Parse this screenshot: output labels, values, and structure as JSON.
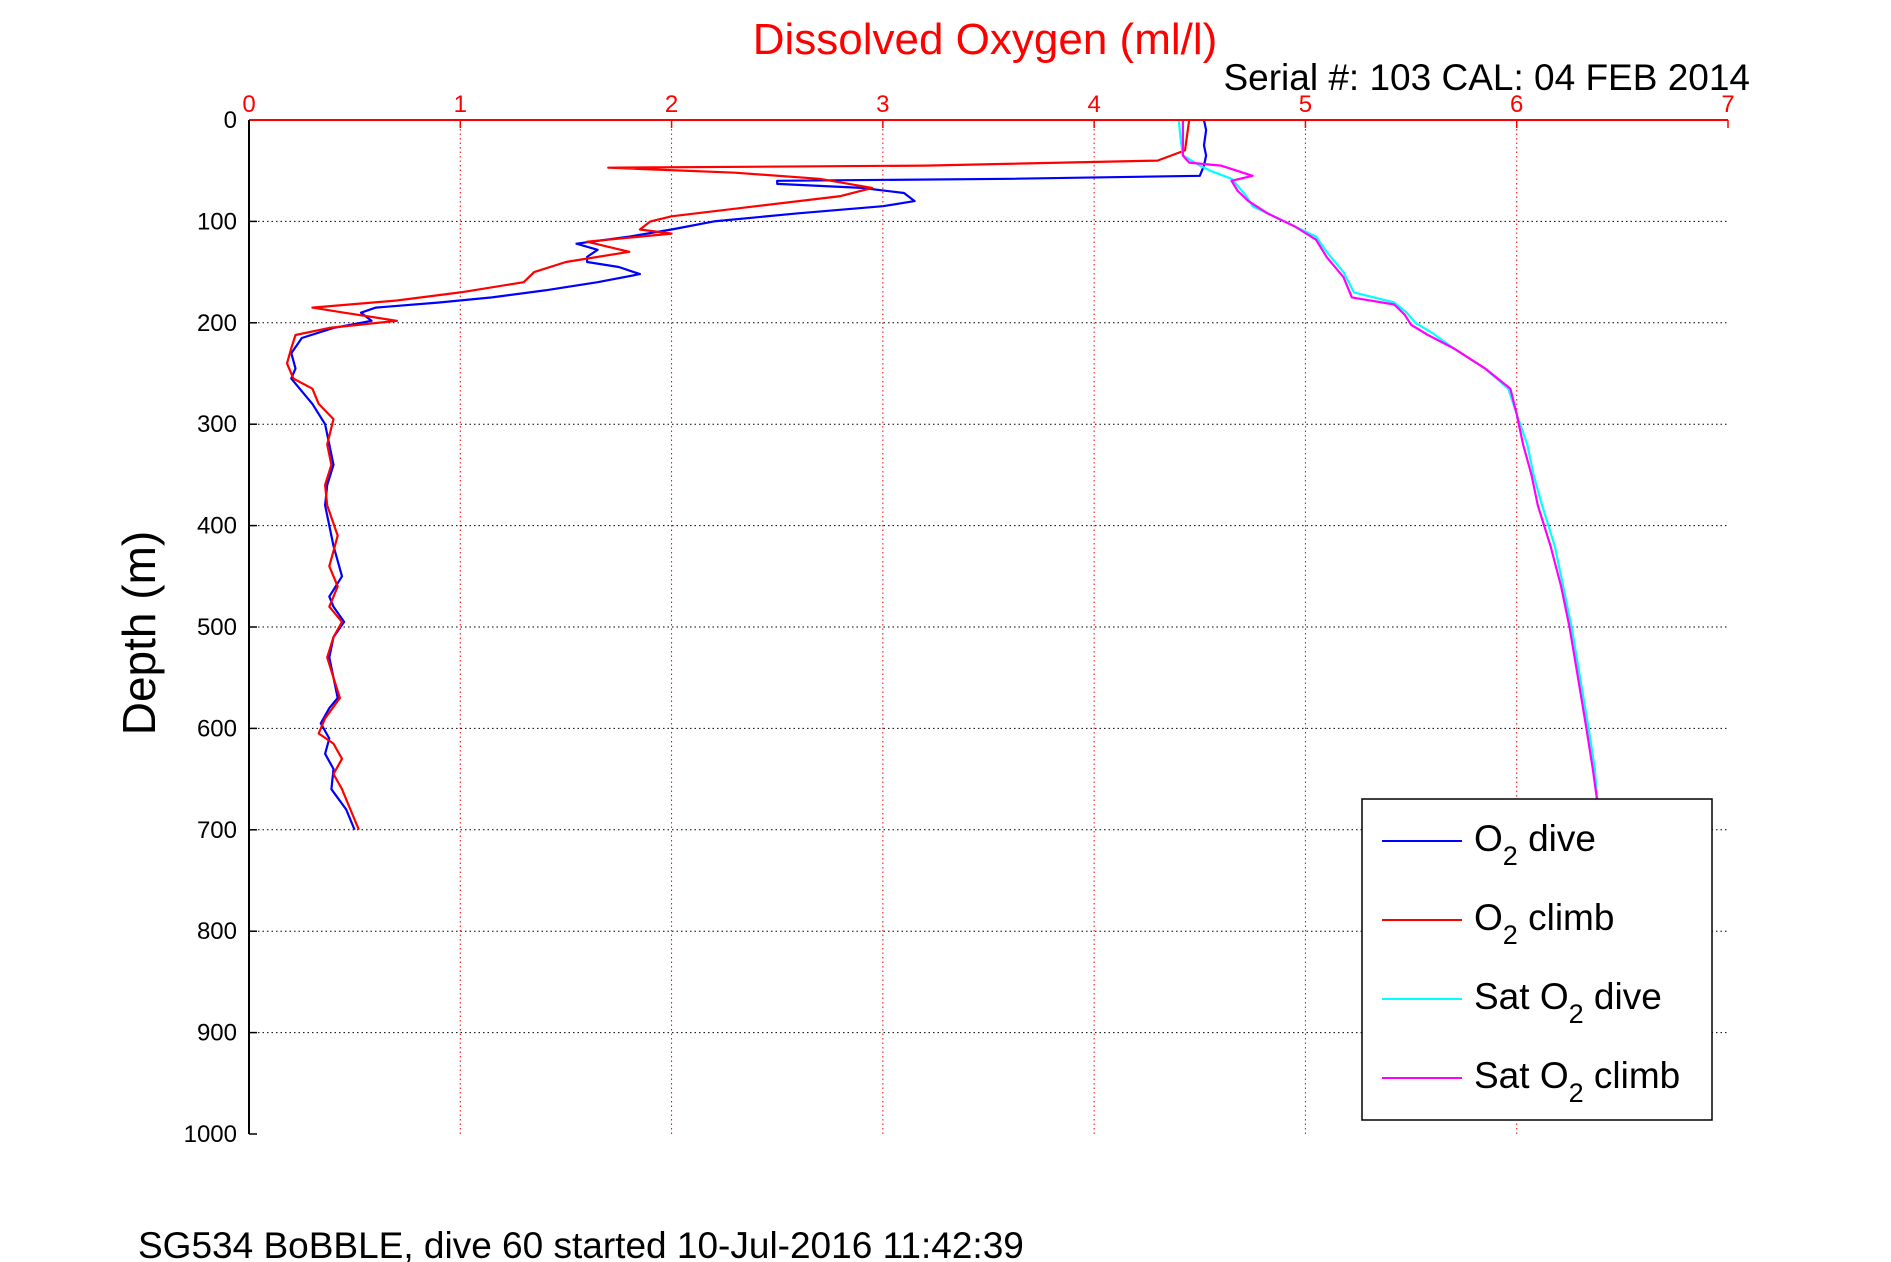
{
  "chart_data": {
    "type": "line",
    "title": "Dissolved Oxygen (ml/l)",
    "subtitle": "Serial #: 103  CAL: 04 FEB 2014",
    "footer": "SG534 BoBBLE, dive 60 started 10-Jul-2016 11:42:39",
    "ylabel": "Depth (m)",
    "xlabel": "",
    "xlim": [
      0,
      7
    ],
    "ylim": [
      0,
      1000
    ],
    "y_reversed": true,
    "x_axis_position": "top",
    "x_ticks": [
      0,
      1,
      2,
      3,
      4,
      5,
      6,
      7
    ],
    "y_ticks": [
      0,
      100,
      200,
      300,
      400,
      500,
      600,
      700,
      800,
      900,
      1000
    ],
    "grid": true,
    "legend_position": "bottom-right",
    "colors": {
      "title": "#ff0000",
      "x_ticks": "#ff0000",
      "x_grid": "#ff0000",
      "y_grid": "#000000"
    },
    "series": [
      {
        "name": "O2 dive",
        "legend_main": "O",
        "legend_sub": "2",
        "legend_rest": " dive",
        "color": "#0000ff",
        "points": [
          [
            4.52,
            0
          ],
          [
            4.53,
            10
          ],
          [
            4.52,
            25
          ],
          [
            4.53,
            35
          ],
          [
            4.52,
            45
          ],
          [
            4.5,
            55
          ],
          [
            3.6,
            58
          ],
          [
            2.5,
            60
          ],
          [
            2.5,
            63
          ],
          [
            2.9,
            67
          ],
          [
            3.1,
            72
          ],
          [
            3.15,
            80
          ],
          [
            3.0,
            85
          ],
          [
            2.6,
            92
          ],
          [
            2.2,
            100
          ],
          [
            2.0,
            108
          ],
          [
            1.8,
            115
          ],
          [
            1.55,
            122
          ],
          [
            1.65,
            128
          ],
          [
            1.6,
            135
          ],
          [
            1.6,
            140
          ],
          [
            1.75,
            145
          ],
          [
            1.85,
            152
          ],
          [
            1.65,
            160
          ],
          [
            1.4,
            168
          ],
          [
            1.15,
            175
          ],
          [
            0.9,
            180
          ],
          [
            0.6,
            185
          ],
          [
            0.53,
            190
          ],
          [
            0.58,
            198
          ],
          [
            0.4,
            205
          ],
          [
            0.25,
            215
          ],
          [
            0.2,
            230
          ],
          [
            0.22,
            245
          ],
          [
            0.2,
            255
          ],
          [
            0.24,
            265
          ],
          [
            0.3,
            280
          ],
          [
            0.36,
            300
          ],
          [
            0.38,
            320
          ],
          [
            0.4,
            340
          ],
          [
            0.37,
            360
          ],
          [
            0.36,
            380
          ],
          [
            0.38,
            400
          ],
          [
            0.4,
            420
          ],
          [
            0.44,
            450
          ],
          [
            0.38,
            470
          ],
          [
            0.4,
            480
          ],
          [
            0.45,
            495
          ],
          [
            0.4,
            510
          ],
          [
            0.38,
            530
          ],
          [
            0.4,
            550
          ],
          [
            0.42,
            570
          ],
          [
            0.38,
            580
          ],
          [
            0.34,
            595
          ],
          [
            0.38,
            610
          ],
          [
            0.36,
            625
          ],
          [
            0.4,
            640
          ],
          [
            0.39,
            660
          ],
          [
            0.46,
            680
          ],
          [
            0.5,
            700
          ]
        ]
      },
      {
        "name": "O2 climb",
        "legend_main": "O",
        "legend_sub": "2",
        "legend_rest": " climb",
        "color": "#ff0000",
        "points": [
          [
            4.45,
            0
          ],
          [
            4.44,
            15
          ],
          [
            4.43,
            30
          ],
          [
            4.3,
            40
          ],
          [
            3.2,
            45
          ],
          [
            1.7,
            47
          ],
          [
            2.3,
            52
          ],
          [
            2.7,
            58
          ],
          [
            2.95,
            67
          ],
          [
            2.8,
            75
          ],
          [
            2.4,
            85
          ],
          [
            2.0,
            95
          ],
          [
            1.9,
            100
          ],
          [
            1.85,
            108
          ],
          [
            2.0,
            112
          ],
          [
            1.6,
            120
          ],
          [
            1.7,
            125
          ],
          [
            1.8,
            130
          ],
          [
            1.5,
            140
          ],
          [
            1.35,
            150
          ],
          [
            1.3,
            160
          ],
          [
            1.0,
            170
          ],
          [
            0.7,
            178
          ],
          [
            0.3,
            185
          ],
          [
            0.45,
            190
          ],
          [
            0.7,
            198
          ],
          [
            0.38,
            205
          ],
          [
            0.22,
            212
          ],
          [
            0.2,
            225
          ],
          [
            0.18,
            240
          ],
          [
            0.21,
            255
          ],
          [
            0.3,
            265
          ],
          [
            0.33,
            280
          ],
          [
            0.4,
            295
          ],
          [
            0.37,
            320
          ],
          [
            0.39,
            340
          ],
          [
            0.36,
            360
          ],
          [
            0.37,
            380
          ],
          [
            0.42,
            410
          ],
          [
            0.38,
            440
          ],
          [
            0.42,
            460
          ],
          [
            0.38,
            480
          ],
          [
            0.44,
            495
          ],
          [
            0.4,
            510
          ],
          [
            0.37,
            530
          ],
          [
            0.4,
            550
          ],
          [
            0.43,
            570
          ],
          [
            0.36,
            590
          ],
          [
            0.33,
            605
          ],
          [
            0.4,
            615
          ],
          [
            0.44,
            630
          ],
          [
            0.4,
            645
          ],
          [
            0.44,
            660
          ],
          [
            0.48,
            680
          ],
          [
            0.52,
            700
          ]
        ]
      },
      {
        "name": "Sat O2 dive",
        "legend_main": "Sat O",
        "legend_sub": "2",
        "legend_rest": " dive",
        "color": "#00ffff",
        "points": [
          [
            4.4,
            0
          ],
          [
            4.41,
            20
          ],
          [
            4.42,
            35
          ],
          [
            4.5,
            45
          ],
          [
            4.55,
            50
          ],
          [
            4.65,
            58
          ],
          [
            4.68,
            65
          ],
          [
            4.72,
            75
          ],
          [
            4.75,
            85
          ],
          [
            4.85,
            95
          ],
          [
            4.95,
            105
          ],
          [
            5.05,
            115
          ],
          [
            5.1,
            130
          ],
          [
            5.18,
            150
          ],
          [
            5.23,
            170
          ],
          [
            5.42,
            180
          ],
          [
            5.48,
            190
          ],
          [
            5.52,
            200
          ],
          [
            5.6,
            210
          ],
          [
            5.7,
            225
          ],
          [
            5.85,
            245
          ],
          [
            5.96,
            265
          ],
          [
            6.0,
            290
          ],
          [
            6.05,
            320
          ],
          [
            6.08,
            350
          ],
          [
            6.12,
            380
          ],
          [
            6.18,
            420
          ],
          [
            6.22,
            460
          ],
          [
            6.26,
            500
          ],
          [
            6.3,
            550
          ],
          [
            6.34,
            600
          ],
          [
            6.37,
            640
          ],
          [
            6.38,
            670
          ]
        ]
      },
      {
        "name": "Sat O2 climb",
        "legend_main": "Sat O",
        "legend_sub": "2",
        "legend_rest": " climb",
        "color": "#ff00ff",
        "points": [
          [
            4.42,
            0
          ],
          [
            4.42,
            20
          ],
          [
            4.42,
            35
          ],
          [
            4.45,
            42
          ],
          [
            4.6,
            45
          ],
          [
            4.75,
            55
          ],
          [
            4.65,
            60
          ],
          [
            4.68,
            70
          ],
          [
            4.73,
            80
          ],
          [
            4.82,
            92
          ],
          [
            4.95,
            105
          ],
          [
            5.05,
            118
          ],
          [
            5.1,
            135
          ],
          [
            5.18,
            155
          ],
          [
            5.22,
            175
          ],
          [
            5.42,
            182
          ],
          [
            5.47,
            192
          ],
          [
            5.5,
            202
          ],
          [
            5.58,
            212
          ],
          [
            5.7,
            225
          ],
          [
            5.85,
            245
          ],
          [
            5.97,
            265
          ],
          [
            6.0,
            290
          ],
          [
            6.03,
            320
          ],
          [
            6.07,
            350
          ],
          [
            6.1,
            380
          ],
          [
            6.16,
            420
          ],
          [
            6.21,
            460
          ],
          [
            6.25,
            500
          ],
          [
            6.29,
            550
          ],
          [
            6.33,
            600
          ],
          [
            6.36,
            640
          ],
          [
            6.38,
            670
          ]
        ]
      }
    ]
  }
}
